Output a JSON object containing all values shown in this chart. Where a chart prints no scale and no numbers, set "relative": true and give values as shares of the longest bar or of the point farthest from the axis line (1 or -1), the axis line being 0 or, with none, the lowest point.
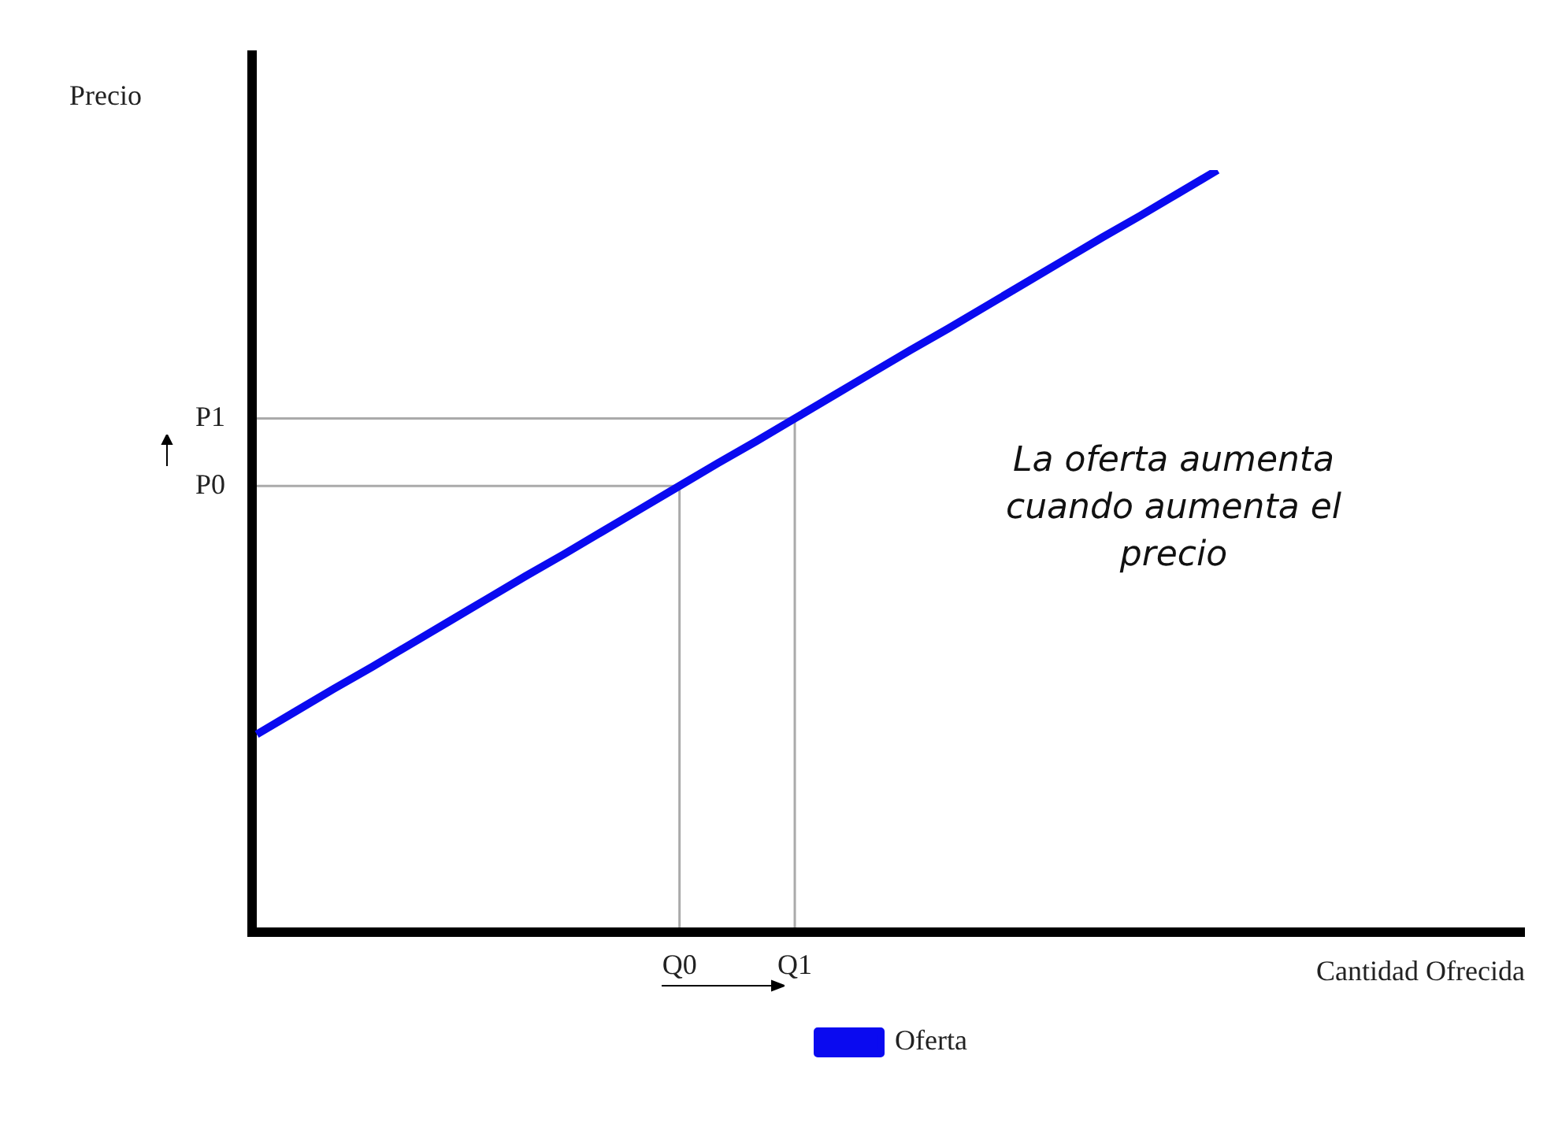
{
  "chart_data": {
    "type": "line",
    "relative": true,
    "xlabel": "Cantidad Ofrecida",
    "ylabel": "Precio",
    "tick_labels": "x",
    "categories": [
      null,
      null,
      null,
      null,
      null,
      null,
      null,
      null,
      null,
      null,
      null,
      "Q0",
      null,
      null,
      "Q1",
      null,
      null,
      null,
      null,
      null,
      null,
      null,
      null,
      null,
      null,
      null,
      null,
      null,
      null,
      null,
      null,
      null,
      null,
      null
    ],
    "series": [
      {
        "name": "Oferta",
        "color": "#0a0af0",
        "values": [
          0.255,
          0.285,
          0.315,
          0.344,
          0.374,
          0.404,
          0.434,
          0.464,
          0.493,
          0.523,
          0.553,
          0.583,
          0.613,
          0.642,
          0.672,
          0.702,
          0.732,
          0.762,
          0.791,
          0.821,
          0.851,
          0.881,
          0.911,
          0.94,
          0.97,
          1,
          null,
          null,
          null,
          null,
          null,
          null,
          null,
          null
        ]
      }
    ],
    "ref_lines": [
      {
        "axis": "y",
        "value": 0.583,
        "label": "P0",
        "color": "#aaaaaa"
      },
      {
        "axis": "y",
        "value": 0.672,
        "label": "P1",
        "color": "#aaaaaa"
      },
      {
        "axis": "x",
        "value": "Q0",
        "color": "#aaaaaa"
      },
      {
        "axis": "x",
        "value": "Q1",
        "color": "#aaaaaa"
      }
    ],
    "annotations": [
      "La oferta aumenta cuando aumenta el precio"
    ],
    "legend": "bottom",
    "grid": false,
    "marker": "none",
    "line_style": "solid"
  }
}
